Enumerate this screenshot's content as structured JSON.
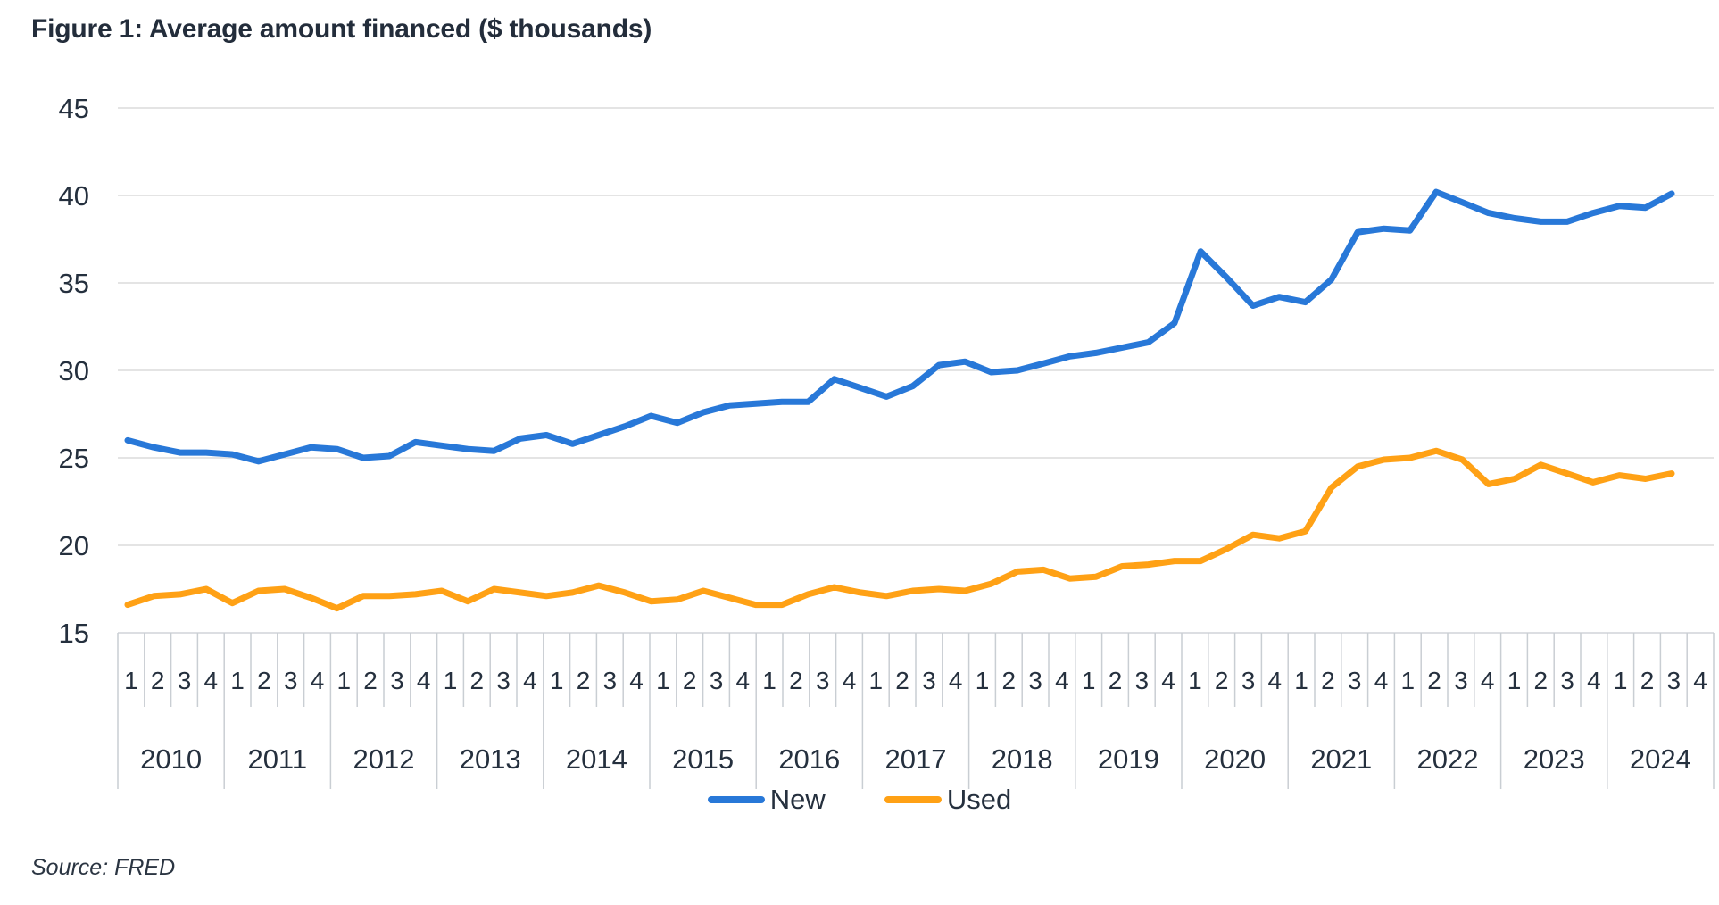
{
  "title": "Figure 1: Average amount financed ($ thousands)",
  "source": "Source: FRED",
  "legend": {
    "items": [
      {
        "label": "New",
        "color": "#2878D8"
      },
      {
        "label": "Used",
        "color": "#FFA115"
      }
    ]
  },
  "colors": {
    "text": "#25303e",
    "gridline": "#dcdcdc",
    "tick": "#c9ced3",
    "axis_line": "#d0d4d8",
    "new_line": "#2878D8",
    "used_line": "#FFA115"
  },
  "chart_data": {
    "type": "line",
    "title": "Figure 1: Average amount financed ($ thousands)",
    "xlabel": "",
    "ylabel": "",
    "ylim": [
      15,
      45
    ],
    "yticks": [
      15,
      20,
      25,
      30,
      35,
      40,
      45
    ],
    "grid": true,
    "legend_position": "bottom",
    "years": [
      "2010",
      "2011",
      "2012",
      "2013",
      "2014",
      "2015",
      "2016",
      "2017",
      "2018",
      "2019",
      "2020",
      "2021",
      "2022",
      "2023",
      "2024"
    ],
    "quarter_labels": [
      "1",
      "2",
      "3",
      "4"
    ],
    "series": [
      {
        "name": "New",
        "color": "#2878D8",
        "values": [
          26.0,
          25.6,
          25.3,
          25.3,
          25.2,
          24.8,
          25.2,
          25.6,
          25.5,
          25.0,
          25.1,
          25.9,
          25.7,
          25.5,
          25.4,
          26.1,
          26.3,
          25.8,
          26.3,
          26.8,
          27.4,
          27.0,
          27.6,
          28.0,
          28.1,
          28.2,
          28.2,
          29.5,
          29.0,
          28.5,
          29.1,
          30.3,
          30.5,
          29.9,
          30.0,
          30.4,
          30.8,
          31.0,
          31.3,
          31.6,
          32.7,
          36.8,
          35.3,
          33.7,
          34.2,
          33.9,
          35.2,
          37.9,
          38.1,
          38.0,
          40.2,
          39.6,
          39.0,
          38.7,
          38.5,
          38.5,
          39.0,
          39.4,
          39.3,
          40.1
        ]
      },
      {
        "name": "Used",
        "color": "#FFA115",
        "values": [
          16.6,
          17.1,
          17.2,
          17.5,
          16.7,
          17.4,
          17.5,
          17.0,
          16.4,
          17.1,
          17.1,
          17.2,
          17.4,
          16.8,
          17.5,
          17.3,
          17.1,
          17.3,
          17.7,
          17.3,
          16.8,
          16.9,
          17.4,
          17.0,
          16.6,
          16.6,
          17.2,
          17.6,
          17.3,
          17.1,
          17.4,
          17.5,
          17.4,
          17.8,
          18.5,
          18.6,
          18.1,
          18.2,
          18.8,
          18.9,
          19.1,
          19.1,
          19.8,
          20.6,
          20.4,
          20.8,
          23.3,
          24.5,
          24.9,
          25.0,
          25.4,
          24.9,
          23.5,
          23.8,
          24.6,
          24.1,
          23.6,
          24.0,
          23.8,
          24.1
        ]
      }
    ]
  }
}
